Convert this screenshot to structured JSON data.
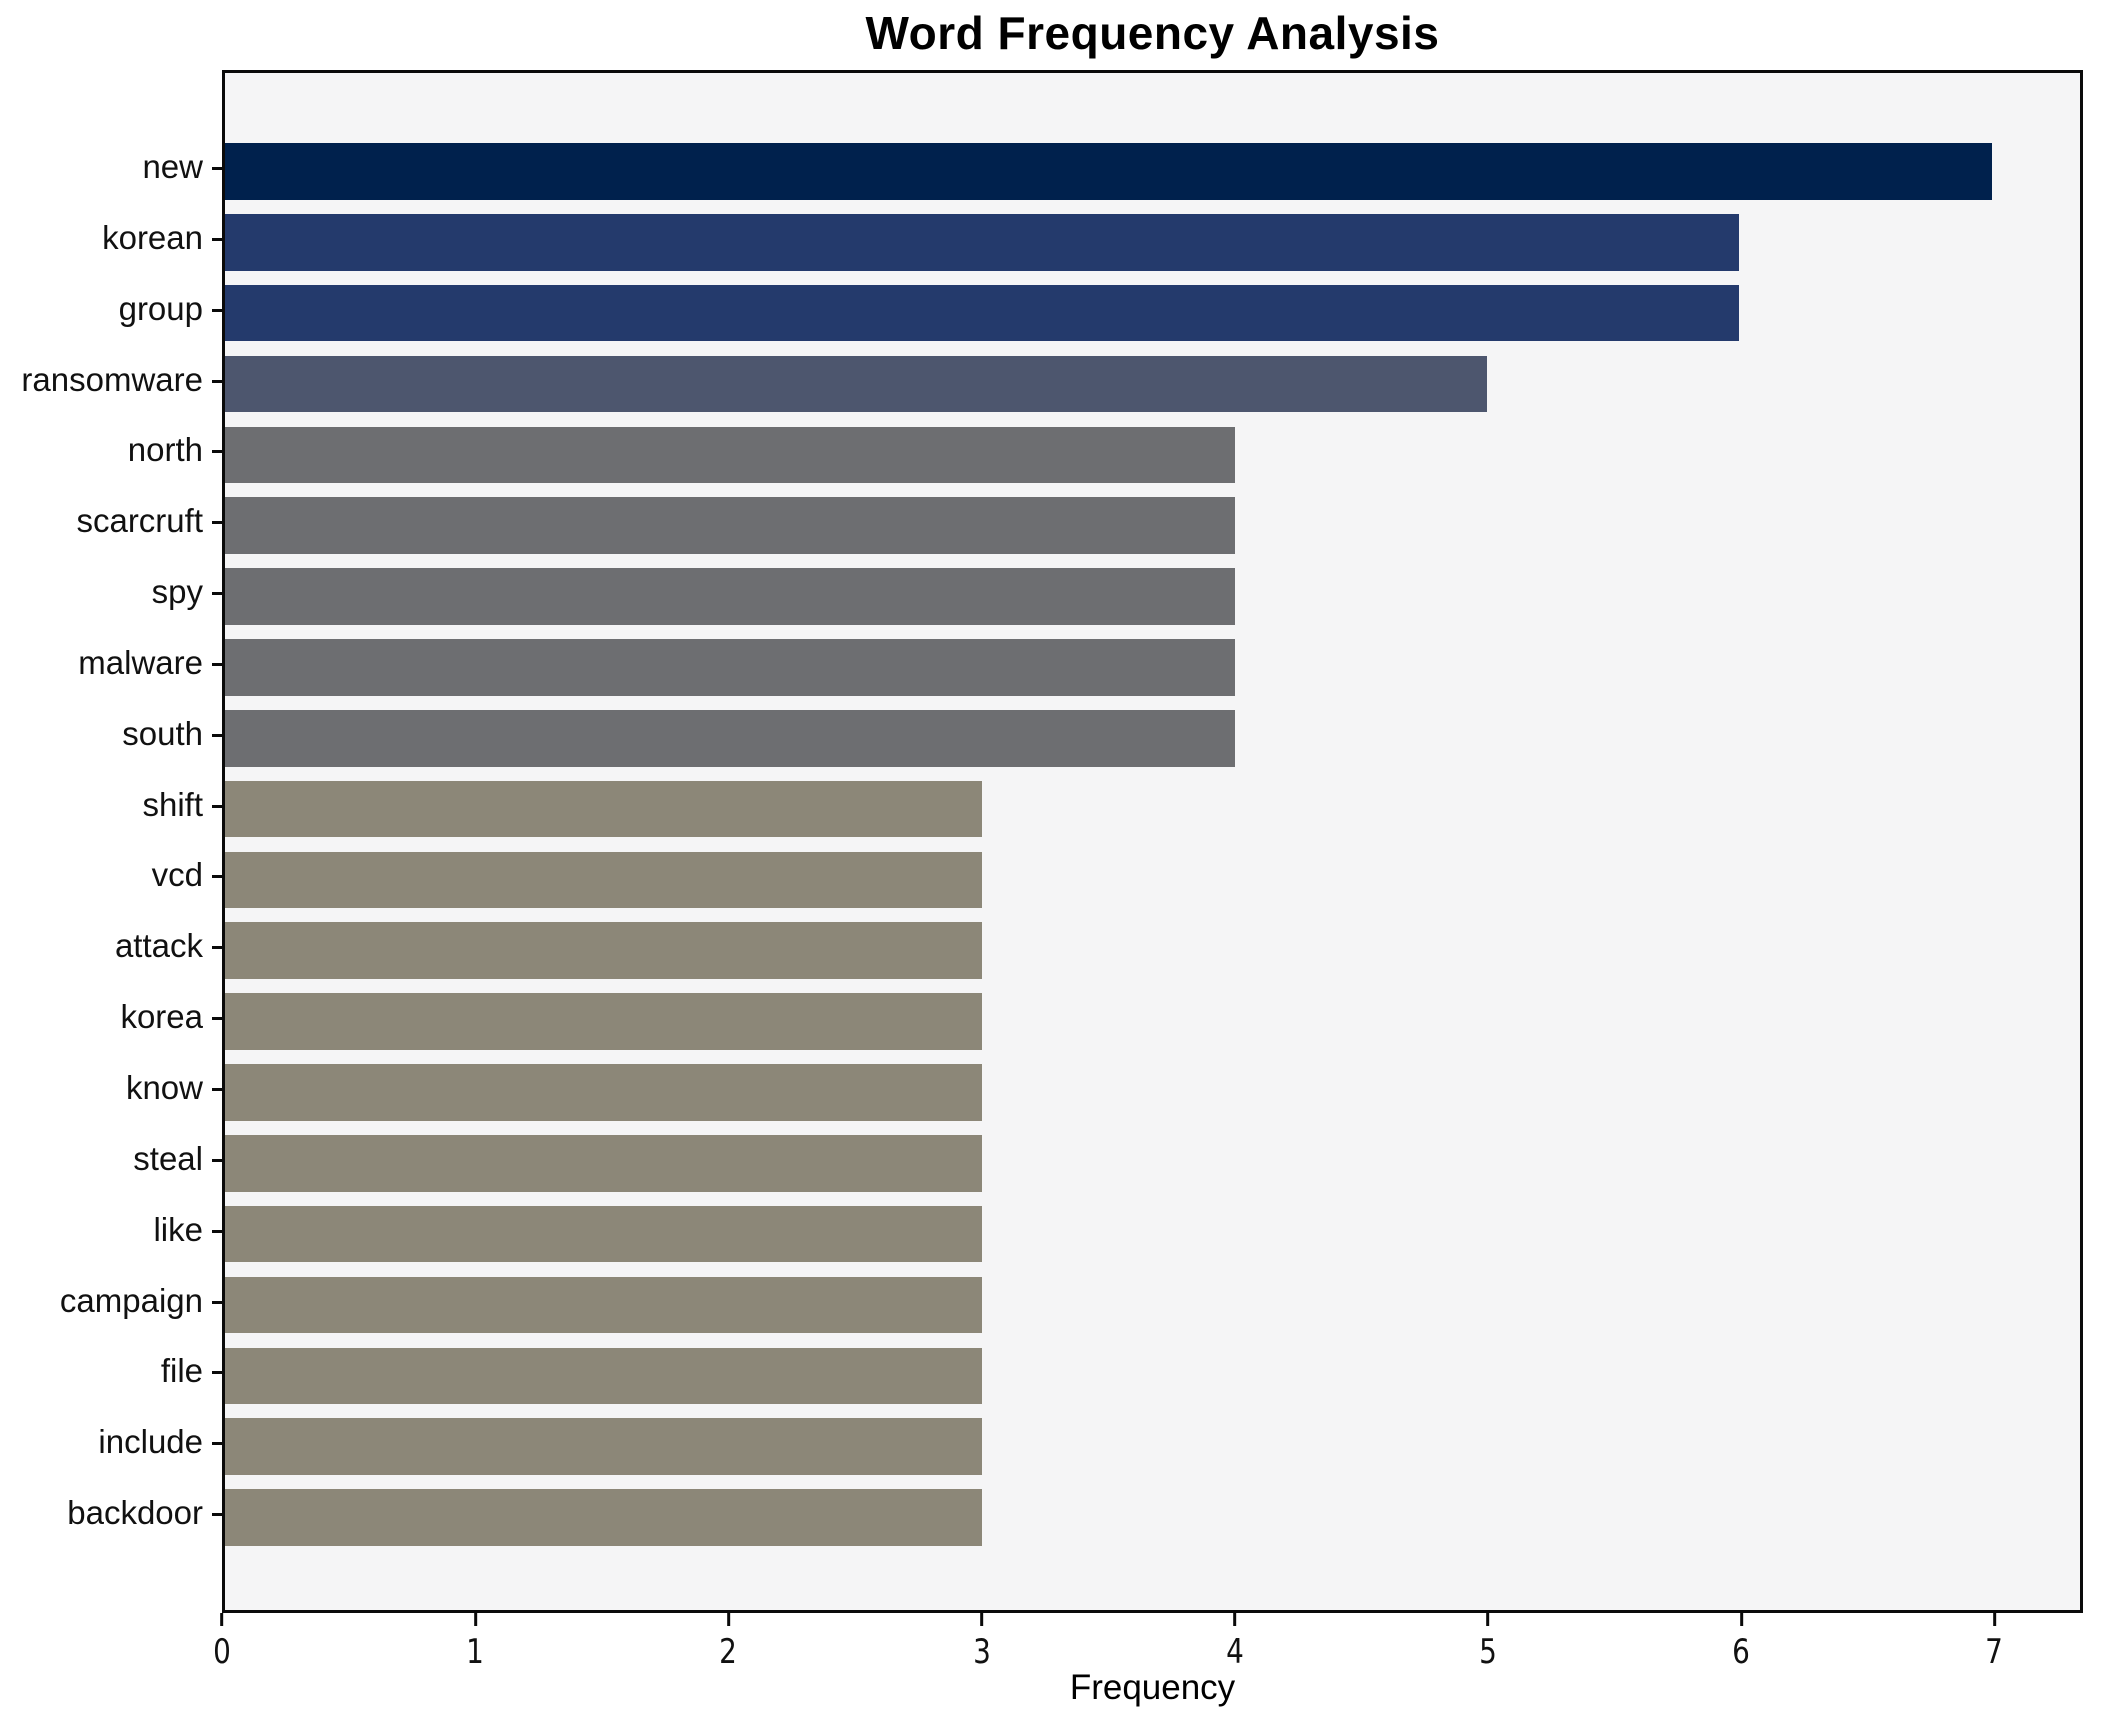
{
  "chart_data": {
    "type": "bar",
    "orientation": "horizontal",
    "title": "Word Frequency Analysis",
    "xlabel": "Frequency",
    "ylabel": "",
    "categories": [
      "new",
      "korean",
      "group",
      "ransomware",
      "north",
      "scarcruft",
      "spy",
      "malware",
      "south",
      "shift",
      "vcd",
      "attack",
      "korea",
      "know",
      "steal",
      "like",
      "campaign",
      "file",
      "include",
      "backdoor"
    ],
    "values": [
      7,
      6,
      6,
      5,
      4,
      4,
      4,
      4,
      4,
      3,
      3,
      3,
      3,
      3,
      3,
      3,
      3,
      3,
      3,
      3
    ],
    "xticks": [
      0,
      1,
      2,
      3,
      4,
      5,
      6,
      7
    ],
    "xlim": [
      0,
      7.35
    ],
    "grid": false,
    "legend": null,
    "value_colors": {
      "7": "#00214d",
      "6": "#243a6c",
      "5": "#4d566e",
      "4": "#6d6e71",
      "3": "#8c8778"
    },
    "plot_background": "#f5f5f6",
    "spine_color": "#0a0a0a"
  }
}
